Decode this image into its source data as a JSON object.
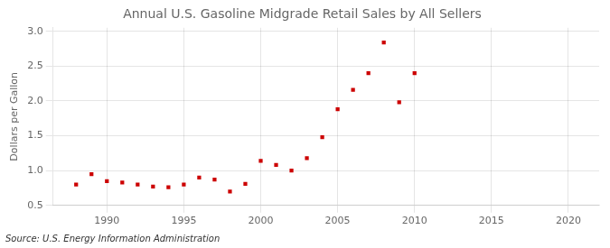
{
  "chart_data": {
    "type": "scatter",
    "title": "Annual U.S. Gasoline Midgrade Retail Sales by All Sellers",
    "ylabel": "Dollars per Gallon",
    "annotations": [
      "Source: U.S. Energy Information Administration"
    ],
    "x": [
      1988,
      1989,
      1990,
      1991,
      1992,
      1993,
      1994,
      1995,
      1996,
      1997,
      1998,
      1999,
      2000,
      2001,
      2002,
      2003,
      2004,
      2005,
      2006,
      2007,
      2008,
      2009,
      2010
    ],
    "values": [
      0.8,
      0.95,
      0.85,
      0.83,
      0.8,
      0.77,
      0.76,
      0.8,
      0.9,
      0.87,
      0.7,
      0.81,
      1.14,
      1.08,
      1.0,
      1.18,
      1.48,
      1.88,
      2.16,
      2.4,
      2.84,
      1.98,
      2.4
    ],
    "color": "#cc0000",
    "marker": "square",
    "xlim": [
      1986.5,
      2022
    ],
    "xticks": [
      1990,
      1995,
      2000,
      2005,
      2010,
      2015,
      2020
    ],
    "ylim": [
      0.5,
      3.05
    ],
    "yticks": [
      0.5,
      {
        "value": 1.0,
        "label": "1.0"
      },
      1.5,
      {
        "value": 2.0,
        "label": "2.0"
      },
      2.5,
      {
        "value": 3.0,
        "label": "3.0"
      }
    ],
    "grid": true
  }
}
